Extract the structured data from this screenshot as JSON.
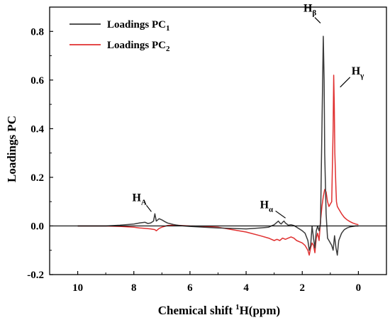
{
  "chart_data": {
    "type": "line",
    "xlabel": "Chemical shift",
    "xlabel_sup": "1",
    "xlabel_tail": "H(ppm)",
    "ylabel": "Loadings PC",
    "xlim": [
      11,
      -1
    ],
    "ylim": [
      -0.2,
      0.9
    ],
    "x_reversed": true,
    "xticks": [
      10,
      8,
      6,
      4,
      2,
      0
    ],
    "xtick_labels": [
      "10",
      "8",
      "6",
      "4",
      "2",
      "0"
    ],
    "yticks": [
      -0.2,
      0.0,
      0.2,
      0.4,
      0.6,
      0.8
    ],
    "ytick_labels": [
      "-0.2",
      "0.0",
      "0.2",
      "0.4",
      "0.6",
      "0.8"
    ],
    "zero_line": true,
    "grid": false,
    "legend_position": "top-left",
    "series": [
      {
        "name": "Loadings PC",
        "name_sub": "1",
        "color": "#3a3a3a",
        "x": [
          10.0,
          9.0,
          8.5,
          8.0,
          7.8,
          7.6,
          7.5,
          7.4,
          7.3,
          7.25,
          7.2,
          7.15,
          7.1,
          7.0,
          6.9,
          6.8,
          6.6,
          6.4,
          6.0,
          5.5,
          5.0,
          4.5,
          4.0,
          3.5,
          3.2,
          3.0,
          2.9,
          2.85,
          2.8,
          2.75,
          2.7,
          2.65,
          2.6,
          2.55,
          2.5,
          2.4,
          2.3,
          2.2,
          2.0,
          1.9,
          1.8,
          1.75,
          1.7,
          1.65,
          1.6,
          1.55,
          1.5,
          1.45,
          1.4,
          1.35,
          1.3,
          1.25,
          1.22,
          1.2,
          1.15,
          1.1,
          1.05,
          1.0,
          0.95,
          0.9,
          0.85,
          0.8,
          0.75,
          0.7,
          0.6,
          0.5,
          0.4,
          0.3,
          0.2,
          0.1,
          0.0
        ],
        "y": [
          0.0,
          0.0,
          0.003,
          0.008,
          0.012,
          0.015,
          0.01,
          0.012,
          0.02,
          0.05,
          0.02,
          0.025,
          0.03,
          0.025,
          0.018,
          0.012,
          0.006,
          0.002,
          -0.002,
          -0.005,
          -0.008,
          -0.01,
          -0.012,
          -0.008,
          -0.005,
          0.005,
          0.015,
          0.02,
          0.012,
          0.008,
          0.015,
          0.02,
          0.012,
          0.008,
          0.003,
          0.005,
          0.002,
          -0.005,
          -0.02,
          -0.03,
          -0.06,
          -0.1,
          -0.08,
          0.0,
          -0.05,
          -0.09,
          -0.02,
          0.0,
          -0.02,
          0.01,
          0.4,
          0.78,
          0.6,
          0.3,
          0.05,
          -0.05,
          -0.06,
          -0.07,
          -0.08,
          -0.1,
          -0.04,
          -0.09,
          -0.12,
          -0.06,
          -0.03,
          -0.015,
          -0.008,
          -0.004,
          -0.002,
          0.0,
          0.0
        ]
      },
      {
        "name": "Loadings PC",
        "name_sub": "2",
        "color": "#e03030",
        "x": [
          10.0,
          9.0,
          8.5,
          8.0,
          7.8,
          7.6,
          7.4,
          7.25,
          7.2,
          7.1,
          7.0,
          6.8,
          6.5,
          6.0,
          5.5,
          5.0,
          4.5,
          4.0,
          3.5,
          3.2,
          3.0,
          2.9,
          2.8,
          2.7,
          2.6,
          2.5,
          2.4,
          2.3,
          2.2,
          2.0,
          1.9,
          1.8,
          1.75,
          1.7,
          1.65,
          1.6,
          1.55,
          1.5,
          1.45,
          1.4,
          1.35,
          1.3,
          1.25,
          1.2,
          1.15,
          1.1,
          1.05,
          1.0,
          0.95,
          0.9,
          0.88,
          0.86,
          0.84,
          0.8,
          0.78,
          0.75,
          0.7,
          0.65,
          0.6,
          0.5,
          0.4,
          0.3,
          0.2,
          0.1,
          0.0
        ],
        "y": [
          0.0,
          0.0,
          -0.002,
          -0.005,
          -0.008,
          -0.01,
          -0.012,
          -0.015,
          -0.02,
          -0.01,
          -0.005,
          0.002,
          0.003,
          0.0,
          -0.002,
          -0.005,
          -0.015,
          -0.025,
          -0.04,
          -0.05,
          -0.06,
          -0.055,
          -0.06,
          -0.05,
          -0.055,
          -0.05,
          -0.045,
          -0.05,
          -0.06,
          -0.07,
          -0.08,
          -0.1,
          -0.12,
          -0.09,
          -0.07,
          -0.08,
          -0.11,
          -0.05,
          -0.03,
          -0.06,
          0.02,
          0.08,
          0.12,
          0.15,
          0.14,
          0.1,
          0.08,
          0.09,
          0.1,
          0.4,
          0.62,
          0.5,
          0.3,
          0.15,
          0.1,
          0.08,
          0.07,
          0.06,
          0.05,
          0.035,
          0.025,
          0.018,
          0.012,
          0.008,
          0.005
        ]
      }
    ],
    "annotations": [
      {
        "text": "H",
        "sub": "A",
        "x": 7.3,
        "y": 0.05
      },
      {
        "text": "H",
        "sub": "α",
        "x": 2.8,
        "y": 0.015
      },
      {
        "text": "H",
        "sub": "β",
        "x": 1.25,
        "y": 0.77
      },
      {
        "text": "H",
        "sub": "γ",
        "x": 0.7,
        "y": 0.6
      }
    ]
  }
}
